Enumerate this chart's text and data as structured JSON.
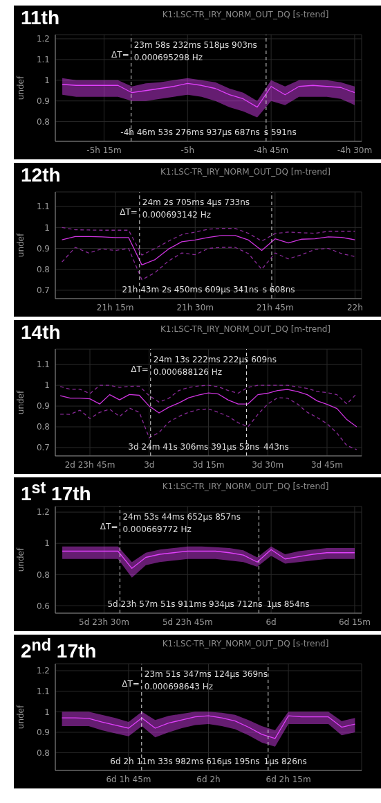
{
  "chart_data": [
    {
      "type": "line",
      "title": "11th",
      "subtitle": "K1:LSC-TR_IRY_NORM_OUT_DQ [s-trend]",
      "ylabel": "undef",
      "categories": [
        null,
        null,
        null,
        "-5h 15m",
        null,
        null,
        null,
        null,
        null,
        "-5h",
        null,
        null,
        null,
        null,
        null,
        "-4h 45m",
        null,
        null,
        null,
        null,
        null,
        "-4h 30m"
      ],
      "ylim": [
        0.705,
        1.22
      ],
      "yticks": [
        0.8,
        0.9,
        1,
        1.1,
        1.2
      ],
      "grid": true,
      "series": [
        {
          "color": "#e040fb",
          "values": [
            0.98,
            0.975,
            0.975,
            0.975,
            0.975,
            0.94,
            0.95,
            0.96,
            0.97,
            0.985,
            0.975,
            0.96,
            0.93,
            0.91,
            0.87,
            0.97,
            0.93,
            0.97,
            0.975,
            0.97,
            0.965,
            0.94
          ],
          "lower": [
            0.93,
            0.92,
            0.92,
            0.92,
            0.92,
            0.9,
            0.9,
            0.91,
            0.92,
            0.93,
            0.92,
            0.9,
            0.87,
            0.85,
            0.82,
            0.9,
            0.88,
            0.92,
            0.92,
            0.92,
            0.91,
            0.88
          ],
          "upper": [
            1.01,
            1.0,
            1.0,
            1.0,
            1.0,
            0.97,
            0.985,
            0.99,
            1.0,
            1.01,
            1.0,
            0.99,
            0.96,
            0.94,
            0.9,
            1.0,
            0.97,
            1.0,
            1.0,
            1.0,
            0.99,
            0.97
          ]
        }
      ],
      "annotations": [
        "ΔT=",
        "23m 58s 232ms 518µs 903ns",
        "0.000695298 Hz",
        "-4h 46m 53s 276ms 937µs 687ns",
        "s 591ns"
      ]
    },
    {
      "type": "line",
      "title": "12th",
      "subtitle": "K1:LSC-TR_IRY_NORM_OUT_DQ [m-trend]",
      "ylabel": "undef",
      "categories": [
        null,
        null,
        null,
        null,
        "21h 15m",
        null,
        null,
        null,
        null,
        null,
        "21h 30m",
        null,
        null,
        null,
        null,
        null,
        "21h 45m",
        null,
        null,
        null,
        null,
        null,
        "22h"
      ],
      "ylim": [
        0.66,
        1.17
      ],
      "yticks": [
        0.7,
        0.8,
        0.9,
        1,
        1.1
      ],
      "grid": true,
      "series": [
        {
          "color": "#cc33dd",
          "values": [
            0.941,
            0.957,
            0.957,
            0.955,
            0.952,
            0.952,
            0.821,
            0.847,
            0.897,
            0.932,
            0.94,
            0.953,
            0.962,
            0.962,
            0.94,
            0.89,
            0.946,
            0.926,
            0.944,
            0.946,
            0.955,
            0.953,
            0.941
          ]
        },
        {
          "color": "#8a2a99",
          "line_style": "dashed",
          "values": [
            1.0,
            0.989,
            0.988,
            0.987,
            0.987,
            0.987,
            0.868,
            0.9,
            0.935,
            0.966,
            0.978,
            0.992,
            0.996,
            0.996,
            0.972,
            0.935,
            0.971,
            0.978,
            0.975,
            0.972,
            0.982,
            0.982,
            0.982
          ]
        },
        {
          "color": "#8a2a99",
          "line_style": "dashed",
          "values": [
            0.835,
            0.905,
            0.878,
            0.898,
            0.89,
            0.9,
            0.75,
            0.785,
            0.84,
            0.878,
            0.87,
            0.9,
            0.905,
            0.905,
            0.875,
            0.8,
            0.878,
            0.85,
            0.87,
            0.895,
            0.9,
            0.875,
            0.861
          ]
        }
      ],
      "annotations": [
        "ΔT=",
        "24m 2s 705ms 4µs 733ns",
        "0.000693142 Hz",
        "21h 43m 2s 450ms 609µs 341ns",
        "s 608ns"
      ]
    },
    {
      "type": "line",
      "title": "14th",
      "subtitle": "K1:LSC-TR_IRY_NORM_OUT_DQ [m-trend]",
      "ylabel": "undef",
      "categories": [
        null,
        null,
        null,
        "2d 23h 45m",
        null,
        null,
        null,
        null,
        null,
        "3d",
        null,
        null,
        null,
        null,
        null,
        "3d 15m",
        null,
        null,
        null,
        null,
        null,
        "3d 30m",
        null,
        null,
        null,
        null,
        null,
        "3d 45m",
        null,
        null,
        null
      ],
      "ylim": [
        0.66,
        1.174
      ],
      "yticks": [
        0.7,
        0.8,
        0.9,
        1,
        1.1
      ],
      "grid": true,
      "series": [
        {
          "color": "#cc33dd",
          "values": [
            0.95,
            0.938,
            0.938,
            0.935,
            0.91,
            0.955,
            0.93,
            0.956,
            0.952,
            0.9,
            0.867,
            0.895,
            0.915,
            0.94,
            0.953,
            0.963,
            0.958,
            0.929,
            0.91,
            0.91,
            0.955,
            0.962,
            0.975,
            0.98,
            0.97,
            0.955,
            0.925,
            0.908,
            0.888,
            0.835,
            0.8
          ]
        },
        {
          "color": "#8a2a99",
          "line_style": "dashed",
          "values": [
            0.994,
            0.981,
            0.981,
            0.96,
            1.0,
            1.0,
            0.99,
            0.995,
            0.996,
            0.95,
            0.919,
            0.938,
            0.975,
            0.99,
            0.997,
            1.0,
            0.993,
            0.975,
            0.962,
            0.99,
            1.0,
            1.0,
            1.0,
            1.0,
            0.993,
            0.985,
            0.97,
            0.965,
            0.955,
            0.91,
            0.96
          ]
        },
        {
          "color": "#8a2a99",
          "line_style": "dashed",
          "values": [
            0.861,
            0.86,
            0.88,
            0.84,
            0.87,
            0.885,
            0.85,
            0.89,
            0.87,
            0.747,
            0.773,
            0.823,
            0.85,
            0.87,
            0.883,
            0.886,
            0.87,
            0.85,
            0.82,
            0.8,
            0.86,
            0.91,
            0.94,
            0.938,
            0.91,
            0.87,
            0.845,
            0.815,
            0.77,
            0.71,
            0.69
          ]
        }
      ],
      "annotations": [
        "ΔT=",
        "24m 13s 222ms 222µs 609ns",
        "0.000688126 Hz",
        "3d 24m 41s 306ms 391µs 53ns",
        "443ns"
      ]
    },
    {
      "type": "line",
      "title": "1$^{st}$ 17th",
      "subtitle": "K1:LSC-TR_IRY_NORM_OUT_DQ [s-trend]",
      "ylabel": "undef",
      "categories": [
        null,
        null,
        null,
        "5d 23h 30m",
        null,
        null,
        null,
        null,
        null,
        "5d 23h 45m",
        null,
        null,
        null,
        null,
        null,
        "6d",
        null,
        null,
        null,
        null,
        null,
        "6d 15m"
      ],
      "ylim": [
        0.553,
        1.236
      ],
      "yticks": [
        0.6,
        0.8,
        1,
        1.2
      ],
      "grid": true,
      "series": [
        {
          "color": "#e040fb",
          "values": [
            0.95,
            0.95,
            0.95,
            0.95,
            0.95,
            0.84,
            0.91,
            0.93,
            0.94,
            0.95,
            0.95,
            0.95,
            0.94,
            0.925,
            0.88,
            0.96,
            0.9,
            0.915,
            0.93,
            0.94,
            0.94,
            0.94
          ],
          "lower": [
            0.9,
            0.9,
            0.9,
            0.9,
            0.9,
            0.78,
            0.86,
            0.88,
            0.89,
            0.9,
            0.9,
            0.9,
            0.89,
            0.88,
            0.85,
            0.92,
            0.87,
            0.88,
            0.89,
            0.9,
            0.9,
            0.9
          ],
          "upper": [
            0.98,
            0.98,
            0.98,
            0.98,
            0.98,
            0.88,
            0.94,
            0.96,
            0.97,
            0.98,
            0.98,
            0.975,
            0.97,
            0.955,
            0.91,
            0.98,
            0.93,
            0.95,
            0.96,
            0.97,
            0.97,
            0.97
          ]
        }
      ],
      "annotations": [
        "ΔT=",
        "24m 53s 44ms 652µs 857ns",
        "0.000669772 Hz",
        "5d 23h 57m 51s 911ms 934µs 712ns",
        "1µs 854ns"
      ]
    },
    {
      "type": "line",
      "title": "2$^{nd}$ 17th",
      "subtitle": "K1:LSC-TR_IRY_NORM_OUT_DQ [s-trend]",
      "ylabel": "undef",
      "categories": [
        null,
        null,
        null,
        null,
        null,
        "6d 1h 45m",
        null,
        null,
        null,
        null,
        null,
        "6d 2h",
        null,
        null,
        null,
        null,
        null,
        "6d 2h 15m",
        null,
        null,
        null,
        null,
        null
      ],
      "ylim": [
        0.714,
        1.234
      ],
      "yticks": [
        0.8,
        0.9,
        1,
        1.1,
        1.2
      ],
      "grid": true,
      "series": [
        {
          "color": "#e040fb",
          "values": [
            0.97,
            0.97,
            0.968,
            0.95,
            0.935,
            0.92,
            0.97,
            0.92,
            0.945,
            0.96,
            0.975,
            0.98,
            0.97,
            0.955,
            0.925,
            0.89,
            0.87,
            0.98,
            0.975,
            0.975,
            0.975,
            0.925,
            0.94
          ],
          "lower": [
            0.93,
            0.93,
            0.93,
            0.91,
            0.895,
            0.88,
            0.93,
            0.875,
            0.9,
            0.92,
            0.935,
            0.94,
            0.93,
            0.915,
            0.885,
            0.85,
            0.83,
            0.94,
            0.94,
            0.94,
            0.94,
            0.885,
            0.9
          ],
          "upper": [
            1.0,
            1.0,
            1.0,
            0.985,
            0.97,
            0.95,
            1.0,
            0.96,
            0.98,
            0.99,
            1.0,
            1.0,
            0.995,
            0.985,
            0.96,
            0.93,
            0.91,
            1.0,
            1.0,
            1.0,
            1.0,
            0.955,
            0.97
          ]
        }
      ],
      "annotations": [
        "ΔT=",
        "23m 51s 347ms 124µs 369ns",
        "0.000698643 Hz",
        "6d 2h 11m 33s 982ms 616µs 195ns",
        "1µs 826ns"
      ]
    }
  ]
}
